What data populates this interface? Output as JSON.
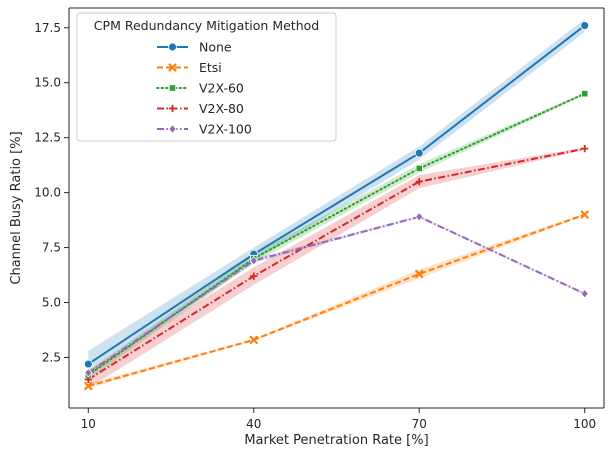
{
  "chart_data": {
    "type": "line",
    "title": "",
    "xlabel": "Market Penetration Rate [%]",
    "ylabel": "Channel Busy Ratio [%]",
    "categories": [
      "10",
      "40",
      "70",
      "100"
    ],
    "x": [
      10,
      40,
      70,
      100
    ],
    "ylim": [
      0.2,
      18.4
    ],
    "yticks": [
      "2.5",
      "5.0",
      "7.5",
      "10.0",
      "12.5",
      "15.0",
      "17.5"
    ],
    "grid": false,
    "legend": {
      "title": "CPM Redundancy Mitigation Method",
      "placement": "top-left"
    },
    "series": [
      {
        "name": "None",
        "values": [
          2.2,
          7.2,
          11.8,
          17.6
        ],
        "ci_low": [
          1.9,
          6.9,
          11.5,
          17.3
        ],
        "ci_high": [
          2.8,
          7.5,
          12.1,
          17.9
        ],
        "color": "#1f77b4",
        "marker": "circle",
        "line_style": "solid"
      },
      {
        "name": "Etsi",
        "values": [
          1.2,
          3.3,
          6.3,
          9.0
        ],
        "ci_low": [
          1.1,
          3.25,
          6.1,
          8.95
        ],
        "ci_high": [
          1.3,
          3.35,
          6.5,
          9.05
        ],
        "color": "#ff7f0e",
        "marker": "x",
        "line_style": "dashed"
      },
      {
        "name": "V2X-60",
        "values": [
          1.7,
          7.0,
          11.1,
          14.5
        ],
        "ci_low": [
          1.5,
          6.8,
          10.9,
          14.45
        ],
        "ci_high": [
          1.9,
          7.2,
          11.3,
          14.55
        ],
        "color": "#2ca02c",
        "marker": "square",
        "line_style": "dotted"
      },
      {
        "name": "V2X-80",
        "values": [
          1.5,
          6.2,
          10.5,
          12.0
        ],
        "ci_low": [
          1.1,
          5.8,
          10.2,
          11.95
        ],
        "ci_high": [
          1.9,
          6.6,
          10.8,
          12.05
        ],
        "color": "#d62728",
        "marker": "plus",
        "line_style": "dashdot"
      },
      {
        "name": "V2X-100",
        "values": [
          1.8,
          6.9,
          8.9,
          5.4
        ],
        "ci_low": [
          1.7,
          6.8,
          8.85,
          5.35
        ],
        "ci_high": [
          1.9,
          7.0,
          8.95,
          5.45
        ],
        "color": "#9467bd",
        "marker": "diamond",
        "line_style": "dashdot"
      }
    ]
  }
}
